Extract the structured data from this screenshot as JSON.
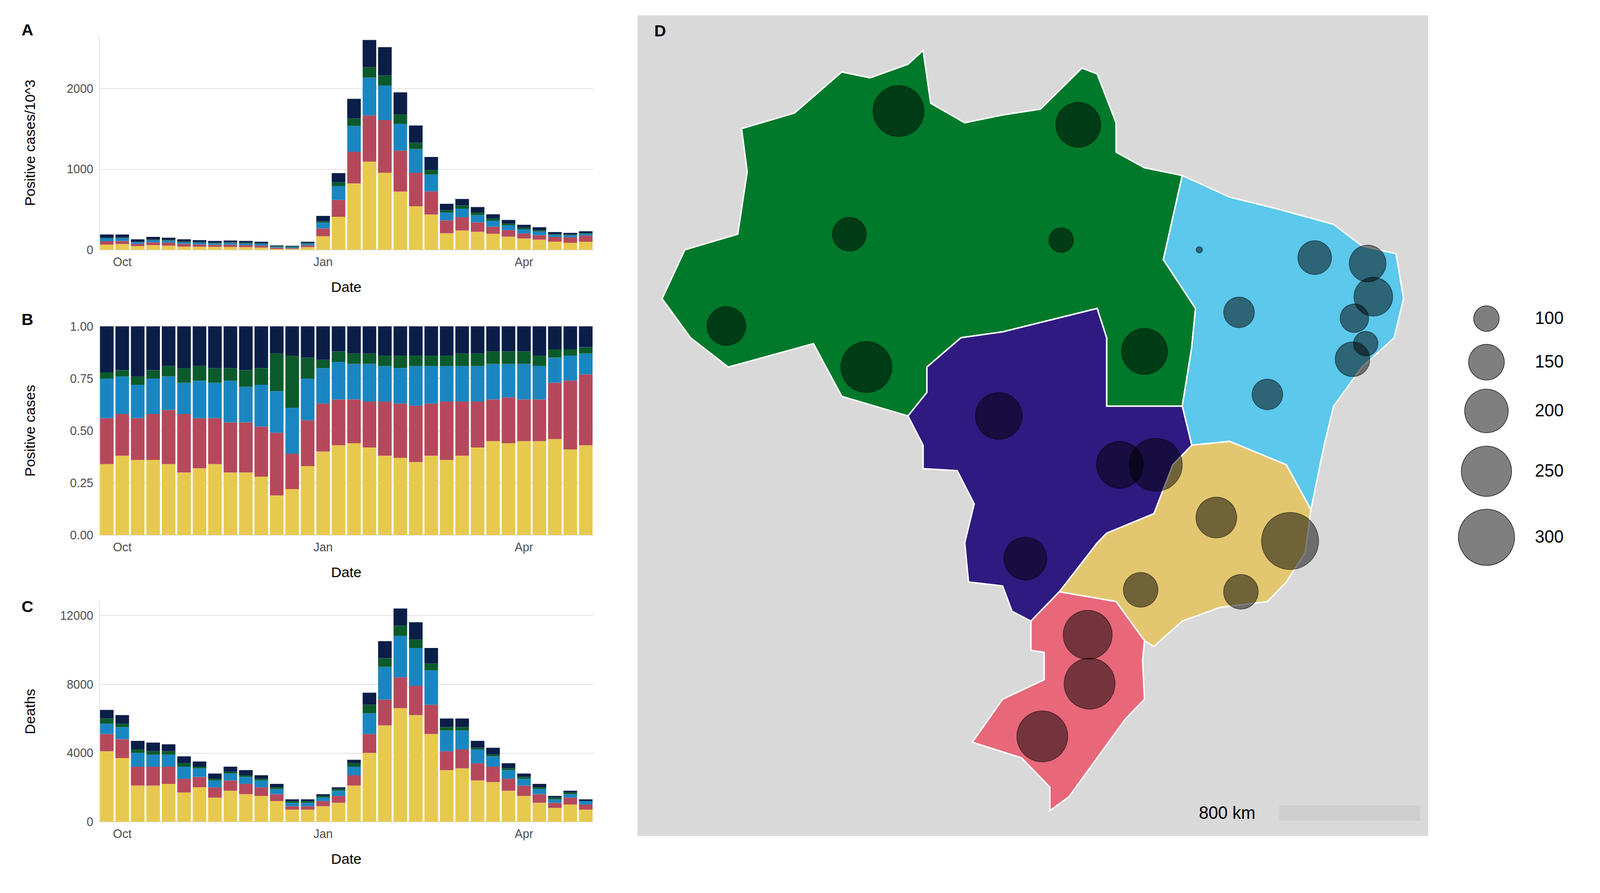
{
  "chart_data": [
    {
      "title": "A",
      "type": "bar",
      "stacked": true,
      "grid": true,
      "x_label": "Date",
      "y_label": "Positive cases/10^3",
      "categories": [
        null,
        "Oct",
        null,
        null,
        null,
        null,
        null,
        null,
        null,
        null,
        null,
        null,
        null,
        null,
        "Jan",
        null,
        null,
        null,
        null,
        null,
        null,
        null,
        null,
        null,
        null,
        null,
        null,
        "Apr",
        null,
        null,
        null,
        null
      ],
      "ylim": [
        0,
        2650
      ],
      "yticks": [
        0,
        1000,
        2000
      ],
      "series": [
        {
          "color": "#E8C94F",
          "values": [
            65,
            72,
            47,
            58,
            51,
            39,
            38,
            37,
            35,
            33,
            28,
            10,
            11,
            33,
            168,
            409,
            823,
            1092,
            954,
            722,
            539,
            437,
            205,
            239,
            223,
            198,
            163,
            140,
            126,
            101,
            86,
            99
          ]
        },
        {
          "color": "#B5495B",
          "values": [
            42,
            38,
            26,
            35,
            39,
            36,
            29,
            24,
            28,
            26,
            24,
            17,
            9,
            22,
            97,
            209,
            393,
            572,
            653,
            507,
            416,
            288,
            160,
            164,
            117,
            88,
            81,
            62,
            56,
            59,
            69,
            78
          ]
        },
        {
          "color": "#1A86C1",
          "values": [
            36,
            34,
            21,
            27,
            24,
            20,
            22,
            19,
            23,
            19,
            20,
            11,
            11,
            20,
            71,
            171,
            318,
            468,
            427,
            331,
            293,
            207,
            97,
            107,
            90,
            75,
            59,
            53,
            45,
            26,
            25,
            23
          ]
        },
        {
          "color": "#0B5A2C",
          "values": [
            6,
            6,
            5,
            6,
            8,
            9,
            8,
            8,
            7,
            9,
            8,
            10,
            12,
            10,
            17,
            48,
            94,
            130,
            125,
            117,
            77,
            57,
            28,
            38,
            32,
            26,
            22,
            19,
            14,
            9,
            6,
            7
          ]
        },
        {
          "color": "#0A1E48",
          "values": [
            41,
            40,
            31,
            34,
            28,
            26,
            23,
            22,
            22,
            23,
            20,
            7,
            7,
            15,
            67,
            113,
            242,
            338,
            351,
            273,
            215,
            161,
            80,
            82,
            68,
            53,
            45,
            36,
            39,
            25,
            24,
            23
          ]
        }
      ]
    },
    {
      "title": "B",
      "type": "bar",
      "stacked": true,
      "grid": true,
      "x_label": "Date",
      "y_label": "Positive cases",
      "categories": [
        null,
        "Oct",
        null,
        null,
        null,
        null,
        null,
        null,
        null,
        null,
        null,
        null,
        null,
        null,
        "Jan",
        null,
        null,
        null,
        null,
        null,
        null,
        null,
        null,
        null,
        null,
        null,
        null,
        "Apr",
        null,
        null,
        null,
        null
      ],
      "ylim": [
        0,
        1
      ],
      "yticks": [
        {
          "value": 0,
          "label": "0.00"
        },
        0.25,
        {
          "value": 0.5,
          "label": "0.50"
        },
        0.75,
        {
          "value": 1,
          "label": "1.00"
        }
      ],
      "series": [
        {
          "color": "#E8C94F",
          "values": [
            0.34,
            0.38,
            0.36,
            0.36,
            0.34,
            0.3,
            0.32,
            0.34,
            0.3,
            0.3,
            0.28,
            0.19,
            0.22,
            0.33,
            0.4,
            0.43,
            0.44,
            0.42,
            0.38,
            0.37,
            0.35,
            0.38,
            0.36,
            0.38,
            0.42,
            0.45,
            0.44,
            0.45,
            0.45,
            0.46,
            0.41,
            0.43
          ]
        },
        {
          "color": "#B5495B",
          "values": [
            0.22,
            0.2,
            0.2,
            0.22,
            0.26,
            0.28,
            0.24,
            0.22,
            0.24,
            0.24,
            0.24,
            0.3,
            0.17,
            0.22,
            0.23,
            0.22,
            0.21,
            0.22,
            0.26,
            0.26,
            0.27,
            0.25,
            0.28,
            0.26,
            0.22,
            0.2,
            0.22,
            0.2,
            0.2,
            0.27,
            0.33,
            0.34
          ]
        },
        {
          "color": "#1A86C1",
          "values": [
            0.19,
            0.18,
            0.16,
            0.17,
            0.16,
            0.15,
            0.18,
            0.17,
            0.2,
            0.17,
            0.2,
            0.2,
            0.22,
            0.2,
            0.17,
            0.18,
            0.17,
            0.18,
            0.17,
            0.17,
            0.19,
            0.18,
            0.17,
            0.17,
            0.17,
            0.17,
            0.16,
            0.17,
            0.16,
            0.12,
            0.12,
            0.1
          ]
        },
        {
          "color": "#0B5A2C",
          "values": [
            0.03,
            0.03,
            0.04,
            0.04,
            0.05,
            0.07,
            0.07,
            0.07,
            0.06,
            0.08,
            0.08,
            0.18,
            0.25,
            0.1,
            0.04,
            0.05,
            0.05,
            0.05,
            0.05,
            0.06,
            0.05,
            0.05,
            0.05,
            0.06,
            0.06,
            0.06,
            0.06,
            0.06,
            0.05,
            0.04,
            0.03,
            0.03
          ]
        },
        {
          "color": "#0A1E48",
          "values": [
            0.22,
            0.21,
            0.24,
            0.21,
            0.19,
            0.2,
            0.19,
            0.2,
            0.2,
            0.21,
            0.2,
            0.13,
            0.14,
            0.15,
            0.16,
            0.12,
            0.13,
            0.13,
            0.14,
            0.14,
            0.14,
            0.14,
            0.14,
            0.13,
            0.13,
            0.12,
            0.12,
            0.12,
            0.14,
            0.11,
            0.11,
            0.1
          ]
        }
      ]
    },
    {
      "title": "C",
      "type": "bar",
      "stacked": true,
      "grid": true,
      "x_label": "Date",
      "y_label": "Deaths",
      "categories": [
        null,
        "Oct",
        null,
        null,
        null,
        null,
        null,
        null,
        null,
        null,
        null,
        null,
        null,
        null,
        "Jan",
        null,
        null,
        null,
        null,
        null,
        null,
        null,
        null,
        null,
        null,
        null,
        null,
        "Apr",
        null,
        null,
        null,
        null
      ],
      "ylim": [
        0,
        12800
      ],
      "yticks": [
        0,
        4000,
        8000,
        12000
      ],
      "series": [
        {
          "color": "#E8C94F",
          "values": [
            4100,
            3700,
            2100,
            2100,
            2200,
            1700,
            2000,
            1400,
            1800,
            1600,
            1500,
            1200,
            700,
            700,
            900,
            1100,
            2100,
            4000,
            5600,
            6600,
            6200,
            5100,
            3000,
            3100,
            2400,
            2300,
            1800,
            1500,
            1100,
            800,
            1000,
            700
          ]
        },
        {
          "color": "#B5495B",
          "values": [
            1000,
            1100,
            1100,
            1100,
            1000,
            800,
            600,
            600,
            600,
            600,
            500,
            400,
            200,
            200,
            300,
            400,
            600,
            1100,
            1500,
            1800,
            1700,
            1700,
            1100,
            1100,
            1000,
            900,
            700,
            600,
            500,
            300,
            400,
            300
          ]
        },
        {
          "color": "#1A86C1",
          "values": [
            600,
            700,
            800,
            700,
            700,
            700,
            500,
            400,
            400,
            400,
            400,
            300,
            200,
            200,
            200,
            300,
            500,
            1200,
            1900,
            2400,
            2200,
            2000,
            1200,
            1100,
            800,
            600,
            500,
            400,
            300,
            200,
            200,
            200
          ]
        },
        {
          "color": "#0B5A2C",
          "values": [
            300,
            200,
            200,
            200,
            200,
            200,
            100,
            100,
            100,
            100,
            100,
            100,
            100,
            100,
            100,
            100,
            200,
            500,
            500,
            600,
            500,
            400,
            200,
            200,
            100,
            100,
            100,
            100,
            100,
            100,
            100,
            0
          ]
        },
        {
          "color": "#0A1E48",
          "values": [
            500,
            500,
            500,
            500,
            400,
            400,
            300,
            300,
            300,
            300,
            200,
            200,
            100,
            100,
            100,
            100,
            200,
            700,
            1000,
            1000,
            1000,
            900,
            500,
            500,
            400,
            400,
            300,
            200,
            200,
            100,
            100,
            100
          ]
        }
      ]
    },
    {
      "title": "D",
      "type": "scatter",
      "tick_labels": false,
      "color": "#000000",
      "xlim": [
        -75.3,
        -33.5
      ],
      "ylim": [
        -35,
        7
      ],
      "x": [
        -61.5,
        -52.0,
        -64.1,
        -52.9,
        -70.6,
        -63.2,
        -48.5,
        -56.2,
        -49.8,
        -47.9,
        -54.8,
        -45.6,
        -43.5,
        -39.5,
        -36.7,
        -36.4,
        -37.4,
        -36.8,
        -37.5,
        -42.0,
        -44.7,
        -40.8,
        -48.7,
        -43.4,
        -51.5,
        -51.4,
        -53.9
      ],
      "y": [
        2.1,
        1.4,
        -4.2,
        -4.5,
        -8.9,
        -11.0,
        -10.2,
        -13.5,
        -16.0,
        -16.0,
        -20.8,
        -5.0,
        -8.2,
        -5.4,
        -5.7,
        -7.4,
        -8.5,
        -9.8,
        -10.6,
        -12.4,
        -18.7,
        -19.9,
        -22.4,
        -22.5,
        -24.7,
        -27.2,
        -29.9
      ],
      "sizes": [
        256,
        209,
        139,
        96,
        168,
        256,
        217,
        224,
        224,
        273,
        195,
        51,
        123,
        139,
        156,
        168,
        113,
        96,
        144,
        123,
        181,
        309,
        144,
        144,
        240,
        256,
        256
      ],
      "size_legend": [
        100,
        150,
        200,
        250,
        300
      ],
      "annotations": [
        "800 km"
      ]
    }
  ]
}
